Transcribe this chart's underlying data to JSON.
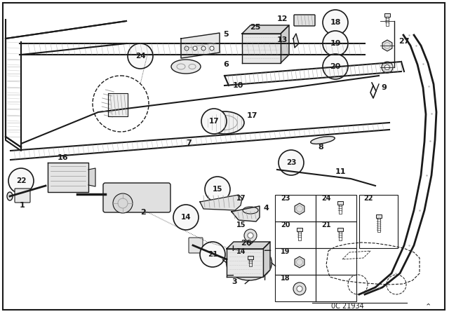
{
  "background_color": "#ffffff",
  "border_color": "#000000",
  "fig_width": 6.4,
  "fig_height": 4.48,
  "dpi": 100,
  "diagram_code": "0C 21934",
  "gray": "#1a1a1a",
  "lightgray": "#666666",
  "dotgray": "#999999"
}
